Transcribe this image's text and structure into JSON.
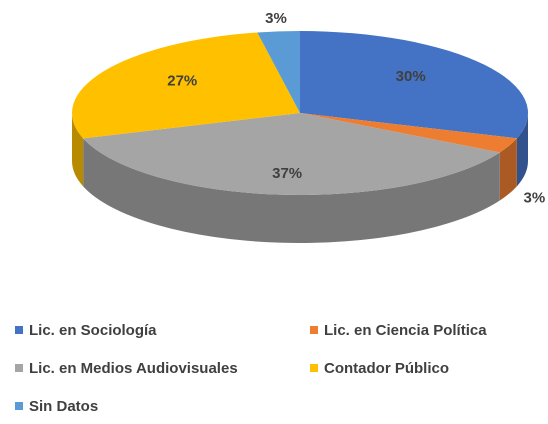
{
  "chart_data": {
    "type": "pie3d",
    "categories": [
      "Lic. en Sociología",
      "Lic. en Ciencia Política",
      "Lic. en Medios Audiovisuales",
      "Contador Público",
      "Sin Datos"
    ],
    "values": [
      30,
      3,
      37,
      27,
      3
    ],
    "value_labels": [
      "30%",
      "3%",
      "37%",
      "27%",
      "3%"
    ],
    "colors": [
      "#4472c4",
      "#ed7d31",
      "#a5a5a5",
      "#ffc000",
      "#5b9bd5"
    ]
  }
}
